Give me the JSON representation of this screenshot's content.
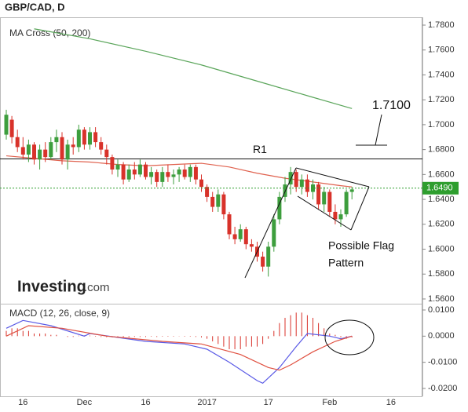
{
  "title": "GBP/CAD, D",
  "chart_data": [
    {
      "type": "candlestick",
      "indicator_label": "MA Cross (50, 200)",
      "watermark": {
        "name": "Investing",
        "suffix": ".com"
      },
      "categories": [
        null,
        null,
        null,
        "16",
        null,
        null,
        null,
        null,
        null,
        null,
        null,
        null,
        null,
        null,
        "Dec",
        null,
        null,
        null,
        null,
        null,
        null,
        null,
        null,
        null,
        null,
        "16",
        null,
        null,
        null,
        null,
        null,
        null,
        null,
        null,
        null,
        null,
        "2017",
        null,
        null,
        null,
        null,
        null,
        null,
        null,
        null,
        null,
        null,
        "17",
        null,
        null,
        null,
        null,
        null,
        null,
        null,
        null,
        null,
        null,
        "Feb",
        null,
        null,
        null,
        null,
        null,
        null,
        null,
        null,
        null,
        null,
        "16",
        null,
        null,
        null,
        null,
        null,
        null
      ],
      "open": [
        1.692,
        1.704,
        1.69,
        1.682,
        1.676,
        1.684,
        1.672,
        1.68,
        1.674,
        1.686,
        1.69,
        1.672,
        1.684,
        1.682,
        1.696,
        1.684,
        1.694,
        1.686,
        1.68,
        1.674,
        1.664,
        1.668,
        1.656,
        1.664,
        1.66,
        1.668,
        1.658,
        1.662,
        1.654,
        1.662,
        1.658,
        1.66,
        1.664,
        1.658,
        1.666,
        1.656,
        1.65,
        1.642,
        1.634,
        1.644,
        1.628,
        1.612,
        1.608,
        1.616,
        1.604,
        1.602,
        1.594,
        1.586,
        1.602,
        1.624,
        1.642,
        1.652,
        1.662,
        1.65,
        1.656,
        1.646,
        1.652,
        1.636,
        1.646,
        1.63,
        1.624,
        1.628,
        1.646,
        null,
        null,
        null,
        null,
        null,
        null,
        null,
        null,
        null,
        null,
        null,
        null,
        null
      ],
      "high": [
        1.712,
        1.707,
        1.696,
        1.69,
        1.688,
        1.686,
        1.684,
        1.686,
        1.69,
        1.696,
        1.694,
        1.688,
        1.69,
        1.7,
        1.698,
        1.698,
        1.698,
        1.69,
        1.684,
        1.676,
        1.672,
        1.67,
        1.668,
        1.67,
        1.672,
        1.67,
        1.666,
        1.664,
        1.666,
        1.668,
        1.664,
        1.666,
        1.668,
        1.668,
        1.668,
        1.66,
        1.652,
        1.646,
        1.648,
        1.646,
        1.63,
        1.618,
        1.62,
        1.618,
        1.608,
        1.606,
        1.598,
        1.606,
        1.628,
        1.646,
        1.658,
        1.666,
        1.664,
        1.66,
        1.66,
        1.656,
        1.654,
        1.65,
        1.648,
        1.636,
        1.632,
        1.648,
        1.65,
        null,
        null,
        null,
        null,
        null,
        null,
        null,
        null,
        null,
        null,
        null,
        null,
        null
      ],
      "low": [
        1.688,
        1.685,
        1.678,
        1.672,
        1.67,
        1.668,
        1.664,
        1.67,
        1.672,
        1.678,
        1.668,
        1.664,
        1.676,
        1.678,
        1.68,
        1.68,
        1.682,
        1.676,
        1.668,
        1.66,
        1.658,
        1.652,
        1.654,
        1.656,
        1.658,
        1.656,
        1.652,
        1.65,
        1.65,
        1.654,
        1.652,
        1.654,
        1.656,
        1.654,
        1.652,
        1.646,
        1.638,
        1.63,
        1.63,
        1.624,
        1.608,
        1.604,
        1.606,
        1.6,
        1.598,
        1.59,
        1.582,
        1.578,
        1.598,
        1.62,
        1.638,
        1.644,
        1.646,
        1.644,
        1.642,
        1.64,
        1.632,
        1.63,
        1.626,
        1.62,
        1.618,
        1.626,
        1.64,
        null,
        null,
        null,
        null,
        null,
        null,
        null,
        null,
        null,
        null,
        null,
        null,
        null
      ],
      "close": [
        1.708,
        1.69,
        1.682,
        1.676,
        1.684,
        1.672,
        1.68,
        1.674,
        1.686,
        1.69,
        1.672,
        1.684,
        1.682,
        1.696,
        1.684,
        1.694,
        1.686,
        1.68,
        1.674,
        1.664,
        1.668,
        1.656,
        1.664,
        1.66,
        1.668,
        1.658,
        1.662,
        1.654,
        1.662,
        1.658,
        1.66,
        1.664,
        1.658,
        1.666,
        1.656,
        1.65,
        1.642,
        1.634,
        1.644,
        1.628,
        1.612,
        1.608,
        1.616,
        1.604,
        1.602,
        1.594,
        1.586,
        1.602,
        1.624,
        1.642,
        1.652,
        1.662,
        1.65,
        1.656,
        1.646,
        1.652,
        1.636,
        1.646,
        1.63,
        1.624,
        1.628,
        1.646,
        1.648,
        null,
        null,
        null,
        null,
        null,
        null,
        null,
        null,
        null,
        null,
        null,
        null,
        null
      ],
      "up_color": "#3d9e3d",
      "down_color": "#d8322a",
      "ma_lines": [
        {
          "color": "#e0624f",
          "x": [
            0,
            5,
            10,
            15,
            20,
            25,
            30,
            35,
            40,
            45,
            50,
            55,
            60,
            62
          ],
          "values": [
            1.675,
            1.673,
            1.671,
            1.67,
            1.668,
            1.667,
            1.668,
            1.669,
            1.666,
            1.661,
            1.657,
            1.654,
            1.651,
            1.65
          ]
        },
        {
          "color": "#5aa55a",
          "x": [
            5,
            15,
            25,
            35,
            45,
            55,
            62
          ],
          "values": [
            1.777,
            1.769,
            1.759,
            1.748,
            1.735,
            1.722,
            1.713
          ]
        }
      ],
      "last_price": {
        "value": 1.649,
        "label": "1.6490"
      },
      "r1": {
        "label": "R1",
        "value": 1.6725
      },
      "annotations": [
        "1.7100",
        "Possible Flag",
        "Pattern"
      ],
      "ylim": [
        1.5562,
        1.7863
      ],
      "yticks": [
        {
          "value": 1.78,
          "label": "1.7800"
        },
        {
          "value": 1.76,
          "label": "1.7600"
        },
        {
          "value": 1.74,
          "label": "1.7400"
        },
        {
          "value": 1.72,
          "label": "1.7200"
        },
        {
          "value": 1.7,
          "label": "1.7000"
        },
        {
          "value": 1.68,
          "label": "1.6800"
        },
        {
          "value": 1.66,
          "label": "1.6600"
        },
        {
          "value": 1.64,
          "label": "1.6400"
        },
        {
          "value": 1.62,
          "label": "1.6200"
        },
        {
          "value": 1.6,
          "label": "1.6000"
        },
        {
          "value": 1.58,
          "label": "1.5800"
        },
        {
          "value": 1.56,
          "label": "1.5600"
        }
      ]
    },
    {
      "type": "macd",
      "indicator_label": "MACD (12, 26, close, 9)",
      "histogram": {
        "color": "#d8322a",
        "values": [
          0.002,
          0.003,
          0.003,
          0.002,
          0.002,
          0.001,
          0.001,
          0.001,
          0.0005,
          0.0005,
          0,
          -0.0003,
          -0.0003,
          0.0002,
          0.0003,
          0.0002,
          -0.0002,
          -0.0003,
          -0.0004,
          -0.0005,
          -0.0005,
          -0.0004,
          -0.0004,
          -0.0003,
          -0.0003,
          -0.0003,
          -0.0002,
          -0.0003,
          -0.0002,
          -0.0002,
          -0.0002,
          -0.0001,
          -0.0002,
          -0.0002,
          -0.0003,
          -0.0005,
          -0.001,
          -0.002,
          -0.003,
          -0.004,
          -0.005,
          -0.005,
          -0.005,
          -0.004,
          -0.004,
          -0.004,
          -0.003,
          -0.001,
          0.002,
          0.005,
          0.007,
          0.008,
          0.009,
          0.009,
          0.008,
          0.007,
          0.005,
          0.003,
          0.001,
          0.0005,
          -0.0005,
          -0.001,
          -0.0005,
          null,
          null,
          null,
          null,
          null,
          null,
          null,
          null,
          null,
          null,
          null,
          null,
          null
        ]
      },
      "lines": [
        {
          "color": "#5a5ae6",
          "x": [
            0,
            3,
            8,
            14,
            15,
            25,
            32,
            36,
            40,
            45,
            46,
            49,
            52,
            54,
            58,
            60,
            62
          ],
          "values": [
            0.003,
            0.006,
            0.004,
            0.0,
            0.001,
            -0.002,
            -0.003,
            -0.005,
            -0.01,
            -0.017,
            -0.018,
            -0.012,
            -0.004,
            0.001,
            0.0,
            -0.001,
            0.0
          ]
        },
        {
          "color": "#e05040",
          "x": [
            0,
            4,
            10,
            18,
            28,
            35,
            42,
            47,
            49,
            51,
            55,
            59,
            62
          ],
          "values": [
            0.0,
            0.004,
            0.003,
            0.0,
            -0.002,
            -0.003,
            -0.007,
            -0.012,
            -0.013,
            -0.011,
            -0.006,
            -0.002,
            0.0
          ]
        }
      ],
      "ylim": [
        -0.023,
        0.0124
      ],
      "yticks": [
        {
          "value": 0.01,
          "label": "0.0100"
        },
        {
          "value": 0,
          "label": "0.0000"
        },
        {
          "value": -0.01,
          "label": "-0.0100"
        },
        {
          "value": -0.02,
          "label": "-0.0200"
        }
      ]
    }
  ]
}
